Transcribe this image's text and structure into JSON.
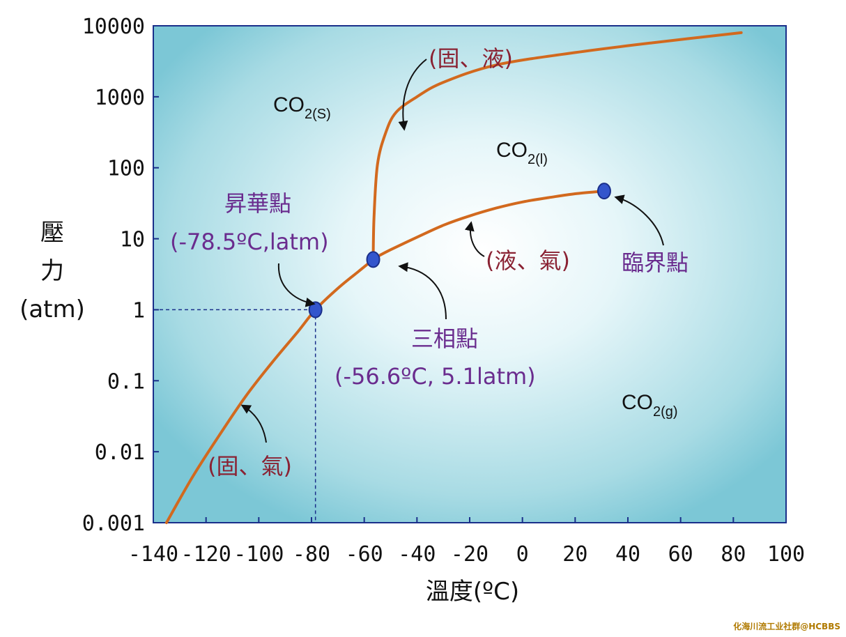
{
  "chart_data": {
    "type": "line",
    "xlabel": "溫度(ºC)",
    "ylabel_lines": [
      "壓",
      "力",
      "(atm)"
    ],
    "x_ticks": [
      "-140",
      "-120",
      "-100",
      "-80",
      "-60",
      "-40",
      "-20",
      "0",
      "20",
      "40",
      "60",
      "80",
      "100"
    ],
    "y_ticks": [
      "10000",
      "1000",
      "100",
      "10",
      "1",
      "0.1",
      "0.01",
      "0.001"
    ],
    "xlim": [
      -140,
      100
    ],
    "ylim": [
      0.001,
      10000
    ],
    "y_scale": "log",
    "grid": false,
    "colors": {
      "background": "#8fd0dc",
      "curve": "#d2691e",
      "point": "#3355cc",
      "frame": "#1a2f8a"
    },
    "series": [
      {
        "x": [
          -135,
          -125,
          -115,
          -105,
          -95,
          -85,
          -78.5,
          -70,
          -62,
          -56.6
        ],
        "y": [
          0.001,
          0.0045,
          0.017,
          0.06,
          0.18,
          0.5,
          1,
          2.0,
          3.5,
          5.1
        ]
      },
      {
        "x": [
          -56.6,
          -55,
          -50,
          -40,
          -30,
          -20,
          -10,
          0,
          10,
          20,
          31
        ],
        "y": [
          5.1,
          5.6,
          7.0,
          10.5,
          15.5,
          21,
          27,
          33,
          38,
          43,
          47
        ]
      },
      {
        "x": [
          -56.6,
          -56.3,
          -55,
          -52,
          -48,
          -40,
          -30,
          -10,
          20,
          50,
          83
        ],
        "y": [
          5.1,
          20,
          110,
          300,
          600,
          1000,
          1600,
          2800,
          4200,
          5800,
          8000
        ]
      }
    ],
    "points": [
      {
        "x": -78.5,
        "y": 1,
        "title": "昇華點",
        "coords": "(-78.5ºC,latm)"
      },
      {
        "x": -56.6,
        "y": 5.1,
        "title": "三相點",
        "coords": "(-56.6ºC, 5.1latm)"
      },
      {
        "x": 31,
        "y": 47,
        "title": "臨界點"
      }
    ],
    "annotations": [
      {
        "text": "(固、液)",
        "color": "red"
      },
      {
        "text": "(液、氣)",
        "color": "red"
      },
      {
        "text": "(固、氣)",
        "color": "red"
      }
    ],
    "phases": [
      {
        "main": "CO",
        "sub": "2(S)"
      },
      {
        "main": "CO",
        "sub": "2(l)"
      },
      {
        "main": "CO",
        "sub": "2(g)"
      }
    ],
    "watermark": "化海川流工业社群@HCBBS"
  }
}
